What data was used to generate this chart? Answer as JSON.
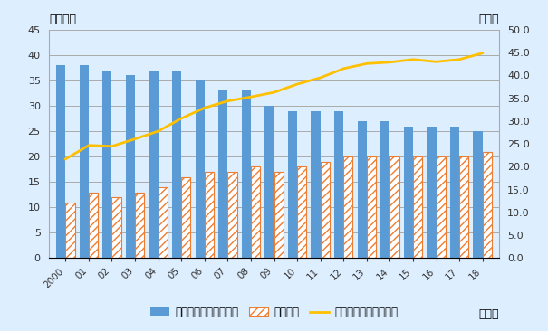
{
  "years": [
    2000,
    2001,
    2002,
    2003,
    2004,
    2005,
    2006,
    2007,
    2008,
    2009,
    2010,
    2011,
    2012,
    2013,
    2014,
    2015,
    2016,
    2017,
    2018
  ],
  "year_labels": [
    "2000",
    "01",
    "02",
    "03",
    "04",
    "05",
    "06",
    "07",
    "08",
    "09",
    "10",
    "11",
    "12",
    "13",
    "14",
    "15",
    "16",
    "17",
    "18"
  ],
  "domestic": [
    38,
    38,
    37,
    36,
    37,
    37,
    35,
    33,
    33,
    30,
    29,
    29,
    29,
    27,
    27,
    26,
    26,
    26,
    25
  ],
  "overseas": [
    11,
    13,
    12,
    13,
    14,
    16,
    17,
    17,
    18,
    17,
    18,
    19,
    20,
    20,
    20,
    20,
    20,
    20,
    21
  ],
  "ratio": [
    21.7,
    24.7,
    24.5,
    26.1,
    27.8,
    30.6,
    32.9,
    34.4,
    35.3,
    36.3,
    38.1,
    39.5,
    41.5,
    42.6,
    42.9,
    43.5,
    43.0,
    43.5,
    44.9
  ],
  "domestic_color": "#5b9bd5",
  "overseas_color": "#ed7d31",
  "ratio_color": "#ffc000",
  "bg_color": "#ddeeff",
  "plot_bg_color": "#ddeeff",
  "grid_color": "#aaaaaa",
  "left_ylabel": "（万件）",
  "right_ylabel": "（％）",
  "xlabel": "（年）",
  "left_ylim": [
    0,
    45
  ],
  "right_ylim": [
    0.0,
    50.0
  ],
  "left_yticks": [
    0,
    5,
    10,
    15,
    20,
    25,
    30,
    35,
    40,
    45
  ],
  "right_yticks": [
    0.0,
    5.0,
    10.0,
    15.0,
    20.0,
    25.0,
    30.0,
    35.0,
    40.0,
    45.0,
    50.0
  ],
  "legend_domestic": "国内（日本）での出願",
  "legend_overseas": "海外出願",
  "legend_ratio": "海外出願比率（右軸）",
  "bar_width": 0.4
}
